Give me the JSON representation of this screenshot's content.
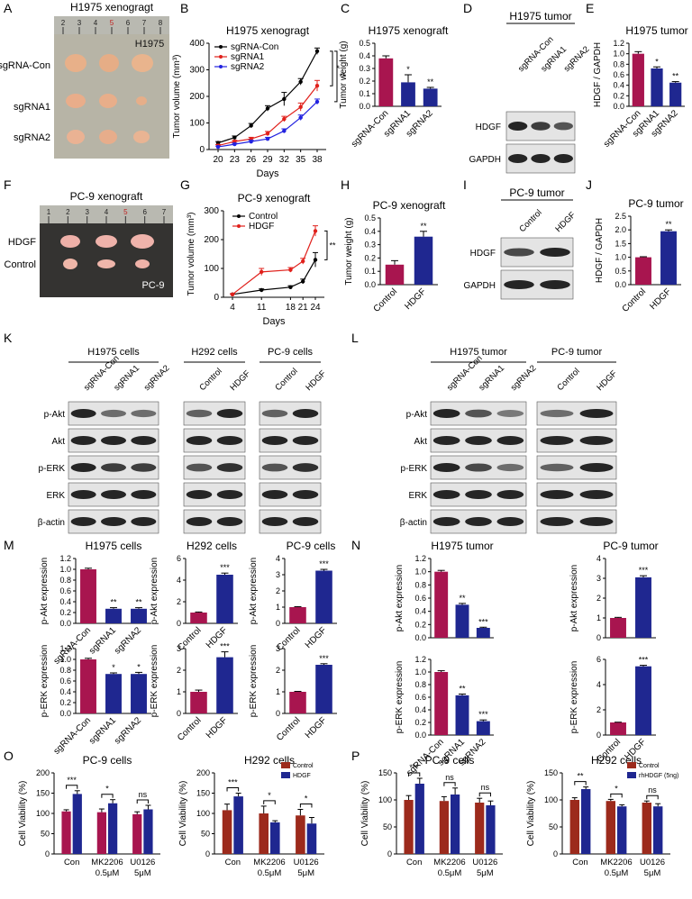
{
  "panel_letters": [
    "A",
    "B",
    "C",
    "D",
    "E",
    "F",
    "G",
    "H",
    "I",
    "J",
    "K",
    "L",
    "M",
    "N",
    "O",
    "P"
  ],
  "photo_A": {
    "title": "H1975 xenogragt",
    "inset": "H1975",
    "ruler": [
      "2",
      "3",
      "4",
      "5",
      "6",
      "7",
      "8"
    ],
    "rows": [
      "sgRNA-Con",
      "sgRNA1",
      "sgRNA2"
    ]
  },
  "photo_F": {
    "title": "PC-9 xenograft",
    "inset": "PC-9",
    "ruler": [
      "1",
      "2",
      "3",
      "4",
      "5",
      "6",
      "7"
    ],
    "rows": [
      "HDGF",
      "Control"
    ]
  },
  "blot_D": {
    "title": "H1975 tumor",
    "lanes": [
      "sgRNA-Con",
      "sgRNA1",
      "sgRNA2"
    ],
    "rows": [
      "HDGF",
      "GAPDH"
    ]
  },
  "blot_I": {
    "title": "PC-9 tumor",
    "lanes": [
      "Control",
      "HDGF"
    ],
    "rows": [
      "HDGF",
      "GAPDH"
    ]
  },
  "blot_K": {
    "groups": [
      {
        "title": "H1975 cells",
        "lanes": [
          "sgRNA-Con",
          "sgRNA1",
          "sgRNA2"
        ]
      },
      {
        "title": "H292 cells",
        "lanes": [
          "Control",
          "HDGF"
        ]
      },
      {
        "title": "PC-9 cells",
        "lanes": [
          "Control",
          "HDGF"
        ]
      }
    ],
    "rows": [
      "p-Akt",
      "Akt",
      "p-ERK",
      "ERK",
      "β-actin"
    ]
  },
  "blot_L": {
    "groups": [
      {
        "title": "H1975 tumor",
        "lanes": [
          "sgRNA-Con",
          "sgRNA1",
          "sgRNA2"
        ]
      },
      {
        "title": "PC-9 tumor",
        "lanes": [
          "Control",
          "HDGF"
        ]
      }
    ],
    "rows": [
      "p-Akt",
      "Akt",
      "p-ERK",
      "ERK",
      "β-actin"
    ]
  },
  "chart_data": [
    {
      "id": "B",
      "type": "line",
      "title": "H1975 xenogragt",
      "xlabel": "Days",
      "ylabel": "Tumor volume (mm³)",
      "x": [
        20,
        23,
        26,
        29,
        32,
        35,
        38
      ],
      "xticks": [
        "20",
        "23",
        "26",
        "29",
        "32",
        "35",
        "38"
      ],
      "ylim": [
        0,
        400
      ],
      "yticks": [
        "0",
        "100",
        "200",
        "300",
        "400"
      ],
      "series": [
        {
          "name": "sgRNA-Con",
          "color": "#000000",
          "values": [
            25,
            45,
            90,
            155,
            190,
            255,
            370
          ],
          "err": [
            5,
            6,
            8,
            10,
            25,
            12,
            12
          ]
        },
        {
          "name": "sgRNA1",
          "color": "#e0201b",
          "values": [
            15,
            30,
            40,
            60,
            115,
            160,
            240
          ],
          "err": [
            4,
            5,
            6,
            8,
            10,
            15,
            20
          ]
        },
        {
          "name": "sgRNA2",
          "color": "#2323e0",
          "values": [
            10,
            20,
            30,
            40,
            70,
            120,
            180
          ],
          "err": [
            3,
            4,
            5,
            6,
            8,
            10,
            10
          ]
        }
      ],
      "annotations": [
        "*",
        "**"
      ]
    },
    {
      "id": "C",
      "type": "bar",
      "title": "H1975 xenograft",
      "ylabel": "Tumor weight (g)",
      "categories": [
        "sgRNA-Con",
        "sgRNA1",
        "sgRNA2"
      ],
      "values": [
        0.38,
        0.19,
        0.14
      ],
      "err": [
        0.02,
        0.06,
        0.01
      ],
      "colors": [
        "#a8154f",
        "#1f2790",
        "#1f2790"
      ],
      "ylim": [
        0,
        0.5
      ],
      "yticks": [
        "0.0",
        "0.1",
        "0.2",
        "0.3",
        "0.4",
        "0.5"
      ],
      "sig": [
        "",
        "*",
        "**"
      ]
    },
    {
      "id": "E",
      "type": "bar",
      "title": "H1975 tumor",
      "ylabel": "HDGF / GAPDH",
      "categories": [
        "sgRNA-Con",
        "sgRNA1",
        "sgRNA2"
      ],
      "values": [
        1.0,
        0.72,
        0.45
      ],
      "err": [
        0.04,
        0.03,
        0.02
      ],
      "colors": [
        "#a8154f",
        "#1f2790",
        "#1f2790"
      ],
      "ylim": [
        0,
        1.2
      ],
      "yticks": [
        "0.0",
        "0.2",
        "0.4",
        "0.6",
        "0.8",
        "1.0",
        "1.2"
      ],
      "sig": [
        "",
        "*",
        "**"
      ]
    },
    {
      "id": "G",
      "type": "line",
      "title": "PC-9 xenograft",
      "xlabel": "Days",
      "ylabel": "Tumor volume (mm³)",
      "x": [
        4,
        11,
        18,
        21,
        24
      ],
      "xticks": [
        "4",
        "11",
        "18",
        "21",
        "24"
      ],
      "ylim": [
        0,
        300
      ],
      "yticks": [
        "0",
        "100",
        "200",
        "300"
      ],
      "series": [
        {
          "name": "Control",
          "color": "#000000",
          "values": [
            10,
            25,
            35,
            55,
            130
          ],
          "err": [
            2,
            4,
            5,
            8,
            25
          ]
        },
        {
          "name": "HDGF",
          "color": "#e0201b",
          "values": [
            10,
            88,
            95,
            125,
            230
          ],
          "err": [
            2,
            12,
            8,
            10,
            18
          ]
        }
      ],
      "annotations": [
        "**"
      ]
    },
    {
      "id": "H",
      "type": "bar",
      "title": "PC-9 xenograft",
      "ylabel": "Tumor weight (g)",
      "categories": [
        "Control",
        "HDGF"
      ],
      "values": [
        0.15,
        0.36
      ],
      "err": [
        0.03,
        0.04
      ],
      "colors": [
        "#a8154f",
        "#1f2790"
      ],
      "ylim": [
        0,
        0.5
      ],
      "yticks": [
        "0.0",
        "0.1",
        "0.2",
        "0.3",
        "0.4",
        "0.5"
      ],
      "sig": [
        "",
        "**"
      ]
    },
    {
      "id": "J",
      "type": "bar",
      "title": "PC-9 tumor",
      "ylabel": "HDGF / GAPDH",
      "categories": [
        "Control",
        "HDGF"
      ],
      "values": [
        1.0,
        1.95
      ],
      "err": [
        0.02,
        0.05
      ],
      "colors": [
        "#a8154f",
        "#1f2790"
      ],
      "ylim": [
        0,
        2.5
      ],
      "yticks": [
        "0.0",
        "0.5",
        "1.0",
        "1.5",
        "2.0",
        "2.5"
      ],
      "sig": [
        "",
        "**"
      ]
    },
    {
      "id": "M1",
      "type": "bar",
      "title": "H1975 cells",
      "ylabel": "p-Akt expression",
      "categories": [
        "sgRNA-Con",
        "sgRNA1",
        "sgRNA2"
      ],
      "values": [
        1.0,
        0.27,
        0.27
      ],
      "err": [
        0.02,
        0.02,
        0.02
      ],
      "colors": [
        "#a8154f",
        "#1f2790",
        "#1f2790"
      ],
      "ylim": [
        0,
        1.2
      ],
      "yticks": [
        "0.0",
        "0.2",
        "0.4",
        "0.6",
        "0.8",
        "1.0",
        "1.2"
      ],
      "sig": [
        "",
        "**",
        "**"
      ]
    },
    {
      "id": "M2",
      "type": "bar",
      "title": "H292 cells",
      "ylabel": "p-Akt expression",
      "categories": [
        "Control",
        "HDGF"
      ],
      "values": [
        1.0,
        4.5
      ],
      "err": [
        0.05,
        0.15
      ],
      "colors": [
        "#a8154f",
        "#1f2790"
      ],
      "ylim": [
        0,
        6
      ],
      "yticks": [
        "0",
        "2",
        "4",
        "6"
      ],
      "sig": [
        "",
        "***"
      ]
    },
    {
      "id": "M3",
      "type": "bar",
      "title": "PC-9 cells",
      "ylabel": "p-Akt expression",
      "categories": [
        "Control",
        "HDGF"
      ],
      "values": [
        1.0,
        3.25
      ],
      "err": [
        0.03,
        0.08
      ],
      "colors": [
        "#a8154f",
        "#1f2790"
      ],
      "ylim": [
        0,
        4
      ],
      "yticks": [
        "0",
        "1",
        "2",
        "3",
        "4"
      ],
      "sig": [
        "",
        "***"
      ]
    },
    {
      "id": "M4",
      "type": "bar",
      "ylabel": "p-ERK expression",
      "categories": [
        "sgRNA-Con",
        "sgRNA1",
        "sgRNA2"
      ],
      "values": [
        1.0,
        0.73,
        0.73
      ],
      "err": [
        0.02,
        0.02,
        0.03
      ],
      "colors": [
        "#a8154f",
        "#1f2790",
        "#1f2790"
      ],
      "ylim": [
        0,
        1.2
      ],
      "yticks": [
        "0.0",
        "0.2",
        "0.4",
        "0.6",
        "0.8",
        "1.0",
        "1.2"
      ],
      "sig": [
        "",
        "*",
        "*"
      ]
    },
    {
      "id": "M5",
      "type": "bar",
      "ylabel": "p-ERK expression",
      "categories": [
        "Control",
        "HDGF"
      ],
      "values": [
        1.0,
        2.6
      ],
      "err": [
        0.08,
        0.25
      ],
      "colors": [
        "#a8154f",
        "#1f2790"
      ],
      "ylim": [
        0,
        3
      ],
      "yticks": [
        "0",
        "1",
        "2",
        "3"
      ],
      "sig": [
        "",
        "***"
      ]
    },
    {
      "id": "M6",
      "type": "bar",
      "ylabel": "p-ERK expression",
      "categories": [
        "Control",
        "HDGF"
      ],
      "values": [
        1.0,
        2.25
      ],
      "err": [
        0.02,
        0.05
      ],
      "colors": [
        "#a8154f",
        "#1f2790"
      ],
      "ylim": [
        0,
        3
      ],
      "yticks": [
        "0",
        "1",
        "2",
        "3"
      ],
      "sig": [
        "",
        "***"
      ]
    },
    {
      "id": "N1",
      "type": "bar",
      "title": "H1975 tumor",
      "ylabel": "p-Akt expression",
      "categories": [
        "sgRNA-Con",
        "sgRNA1",
        "sgRNA2"
      ],
      "values": [
        1.0,
        0.5,
        0.15
      ],
      "err": [
        0.02,
        0.02,
        0.01
      ],
      "colors": [
        "#a8154f",
        "#1f2790",
        "#1f2790"
      ],
      "ylim": [
        0,
        1.2
      ],
      "yticks": [
        "0.0",
        "0.2",
        "0.4",
        "0.6",
        "0.8",
        "1.0",
        "1.2"
      ],
      "sig": [
        "",
        "**",
        "***"
      ]
    },
    {
      "id": "N2",
      "type": "bar",
      "title": "PC-9 tumor",
      "ylabel": "p-Akt expression",
      "categories": [
        "Control",
        "HDGF"
      ],
      "values": [
        1.0,
        3.05
      ],
      "err": [
        0.03,
        0.08
      ],
      "colors": [
        "#a8154f",
        "#1f2790"
      ],
      "ylim": [
        0,
        4
      ],
      "yticks": [
        "0",
        "1",
        "2",
        "3",
        "4"
      ],
      "sig": [
        "",
        "***"
      ]
    },
    {
      "id": "N3",
      "type": "bar",
      "ylabel": "p-ERK expression",
      "categories": [
        "sgRNA-Con",
        "sgRNA1",
        "sgRNA2"
      ],
      "values": [
        1.0,
        0.63,
        0.22
      ],
      "err": [
        0.02,
        0.02,
        0.02
      ],
      "colors": [
        "#a8154f",
        "#1f2790",
        "#1f2790"
      ],
      "ylim": [
        0,
        1.2
      ],
      "yticks": [
        "0.0",
        "0.2",
        "0.4",
        "0.6",
        "0.8",
        "1.0",
        "1.2"
      ],
      "sig": [
        "",
        "**",
        "***"
      ]
    },
    {
      "id": "N4",
      "type": "bar",
      "ylabel": "p-ERK expression",
      "categories": [
        "Control",
        "HDGF"
      ],
      "values": [
        1.0,
        5.45
      ],
      "err": [
        0.02,
        0.08
      ],
      "colors": [
        "#a8154f",
        "#1f2790"
      ],
      "ylim": [
        0,
        6
      ],
      "yticks": [
        "0",
        "2",
        "4",
        "6"
      ],
      "sig": [
        "",
        "***"
      ]
    },
    {
      "id": "O1",
      "type": "grouped-bar",
      "title": "PC-9 cells",
      "ylabel": "Cell Viability (%)",
      "categories": [
        "Con",
        "MK2206\n0.5μM",
        "U0126\n5μM"
      ],
      "series": [
        {
          "name": "Control",
          "color": "#a8154f",
          "values": [
            105,
            103,
            98
          ],
          "err": [
            4,
            8,
            6
          ]
        },
        {
          "name": "HDGF",
          "color": "#1f2790",
          "values": [
            148,
            125,
            110
          ],
          "err": [
            8,
            9,
            10
          ]
        }
      ],
      "ylim": [
        0,
        200
      ],
      "yticks": [
        "0",
        "50",
        "100",
        "150",
        "200"
      ],
      "sig": [
        "***",
        "*",
        "ns"
      ]
    },
    {
      "id": "O2",
      "type": "grouped-bar",
      "title": "H292 cells",
      "ylabel": "Cell Viability (%)",
      "categories": [
        "Con",
        "MK2206\n0.5μM",
        "U0126\n5μM"
      ],
      "series": [
        {
          "name": "Control",
          "color": "#9c2a1c",
          "values": [
            108,
            100,
            95
          ],
          "err": [
            15,
            18,
            15
          ]
        },
        {
          "name": "HDGF",
          "color": "#1f2790",
          "values": [
            142,
            78,
            75
          ],
          "err": [
            8,
            4,
            15
          ]
        }
      ],
      "ylim": [
        0,
        200
      ],
      "yticks": [
        "0",
        "50",
        "100",
        "150",
        "200"
      ],
      "sig": [
        "***",
        "*",
        "*"
      ],
      "legend": [
        "Control",
        "HDGF"
      ]
    },
    {
      "id": "P1",
      "type": "grouped-bar",
      "title": "PC-9 cells",
      "ylabel": "Cell Viability (%)",
      "categories": [
        "Con",
        "MK2206\n0.5μM",
        "U0126\n5μM"
      ],
      "series": [
        {
          "name": "Control",
          "color": "#9c2a1c",
          "values": [
            100,
            98,
            95
          ],
          "err": [
            8,
            8,
            8
          ]
        },
        {
          "name": "rhHDGF (5ng)",
          "color": "#1f2790",
          "values": [
            130,
            110,
            90
          ],
          "err": [
            10,
            12,
            8
          ]
        }
      ],
      "ylim": [
        0,
        150
      ],
      "yticks": [
        "0",
        "50",
        "100",
        "150"
      ],
      "sig": [
        "***",
        "ns",
        "ns"
      ]
    },
    {
      "id": "P2",
      "type": "grouped-bar",
      "title": "H292 cells",
      "ylabel": "Cell Viability (%)",
      "categories": [
        "Con",
        "MK2206\n0.5μM",
        "U0126\n5μM"
      ],
      "series": [
        {
          "name": "Control",
          "color": "#9c2a1c",
          "values": [
            100,
            98,
            95
          ],
          "err": [
            4,
            3,
            3
          ]
        },
        {
          "name": "rhHDGF (5ng)",
          "color": "#1f2790",
          "values": [
            120,
            88,
            88
          ],
          "err": [
            4,
            3,
            5
          ]
        }
      ],
      "ylim": [
        0,
        150
      ],
      "yticks": [
        "0",
        "50",
        "100",
        "150"
      ],
      "sig": [
        "**",
        "*",
        "ns"
      ],
      "legend": [
        "Control",
        "rhHDGF (5ng)"
      ]
    }
  ]
}
